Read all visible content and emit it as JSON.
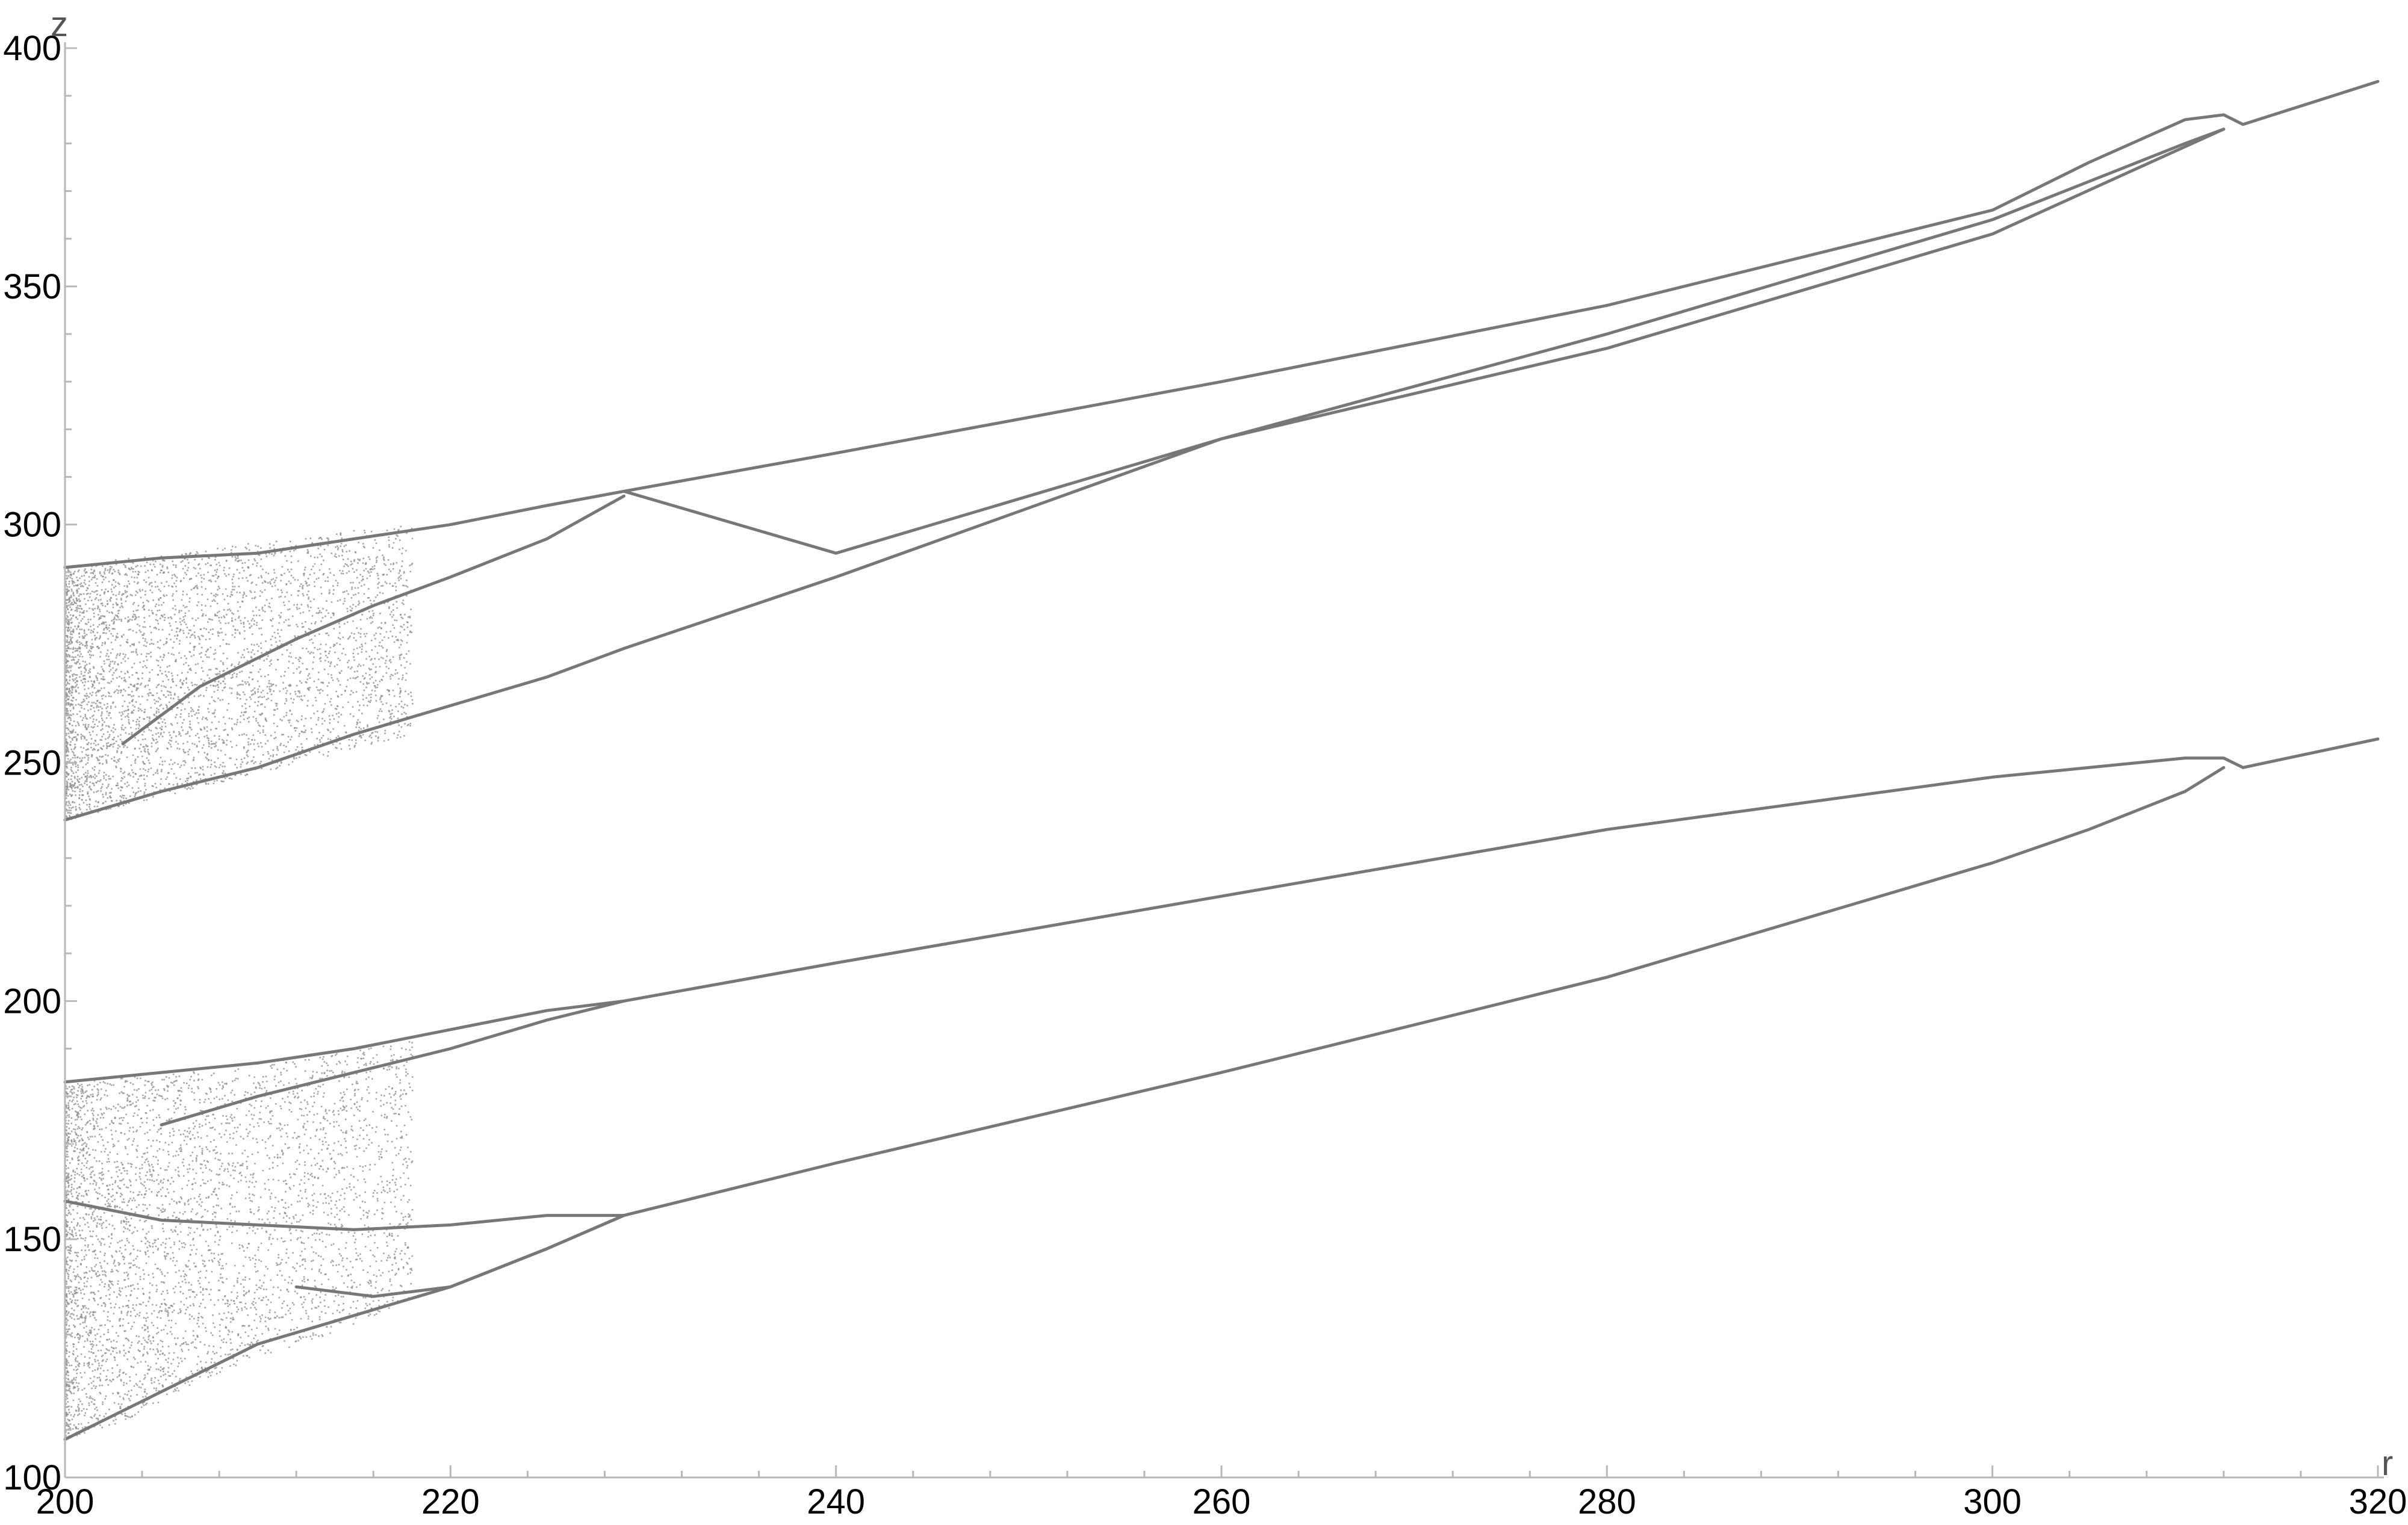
{
  "chart_data": {
    "type": "scatter",
    "title": "",
    "xlabel": "r",
    "ylabel": "z",
    "xlim": [
      200,
      320
    ],
    "ylim": [
      100,
      400
    ],
    "x_ticks": [
      200,
      220,
      240,
      260,
      280,
      300,
      320
    ],
    "y_ticks": [
      100,
      150,
      200,
      250,
      300,
      350,
      400
    ],
    "x_minor_step": 4,
    "y_minor_step": 10,
    "grid": false,
    "legend": "none",
    "point_color": "#8a8a8a",
    "line_color": "#777777",
    "axis_color": "#b8b8b8",
    "branches": [
      {
        "name": "upper-top",
        "points": [
          [
            200,
            291
          ],
          [
            205,
            293
          ],
          [
            210,
            294
          ],
          [
            215,
            297
          ],
          [
            220,
            300
          ],
          [
            225,
            304
          ],
          [
            229,
            307
          ],
          [
            240,
            315
          ],
          [
            260,
            330
          ],
          [
            280,
            346
          ],
          [
            300,
            366
          ],
          [
            305,
            376
          ],
          [
            310,
            385
          ],
          [
            312,
            386
          ],
          [
            313,
            384
          ],
          [
            320,
            393
          ]
        ]
      },
      {
        "name": "upper-inner",
        "points": [
          [
            203,
            254
          ],
          [
            207,
            266
          ],
          [
            212,
            276
          ],
          [
            216,
            283
          ],
          [
            220,
            289
          ],
          [
            225,
            297
          ],
          [
            229,
            306
          ]
        ]
      },
      {
        "name": "upper-lower-loop",
        "points": [
          [
            229,
            307
          ],
          [
            240,
            294
          ],
          [
            260,
            318
          ],
          [
            280,
            340
          ],
          [
            300,
            364
          ],
          [
            305,
            372
          ],
          [
            310,
            380
          ],
          [
            312,
            383
          ]
        ]
      },
      {
        "name": "upper-bottom",
        "points": [
          [
            200,
            238
          ],
          [
            205,
            244
          ],
          [
            210,
            249
          ],
          [
            215,
            256
          ],
          [
            220,
            262
          ],
          [
            225,
            268
          ],
          [
            229,
            274
          ],
          [
            240,
            289
          ],
          [
            260,
            318
          ],
          [
            280,
            337
          ],
          [
            300,
            361
          ],
          [
            312,
            383
          ]
        ]
      },
      {
        "name": "lower-top",
        "points": [
          [
            200,
            183
          ],
          [
            205,
            185
          ],
          [
            210,
            187
          ],
          [
            215,
            190
          ],
          [
            220,
            194
          ],
          [
            225,
            198
          ],
          [
            229,
            200
          ],
          [
            240,
            208
          ],
          [
            260,
            222
          ],
          [
            280,
            236
          ],
          [
            300,
            247
          ],
          [
            305,
            249
          ],
          [
            310,
            251
          ],
          [
            312,
            251
          ],
          [
            313,
            249
          ],
          [
            320,
            255
          ]
        ]
      },
      {
        "name": "lower-inner",
        "points": [
          [
            205,
            174
          ],
          [
            210,
            180
          ],
          [
            215,
            185
          ],
          [
            220,
            190
          ],
          [
            225,
            196
          ],
          [
            229,
            200
          ]
        ]
      },
      {
        "name": "lower-middle",
        "points": [
          [
            200,
            158
          ],
          [
            205,
            154
          ],
          [
            210,
            153
          ],
          [
            215,
            152
          ],
          [
            220,
            153
          ],
          [
            225,
            155
          ],
          [
            229,
            155
          ],
          [
            240,
            166
          ],
          [
            260,
            185
          ],
          [
            280,
            205
          ],
          [
            300,
            229
          ],
          [
            305,
            236
          ],
          [
            310,
            244
          ],
          [
            312,
            249
          ]
        ]
      },
      {
        "name": "lower-mid-inner",
        "points": [
          [
            212,
            140
          ],
          [
            216,
            138
          ],
          [
            220,
            140
          ],
          [
            225,
            148
          ],
          [
            229,
            155
          ]
        ]
      },
      {
        "name": "lower-bottom",
        "points": [
          [
            200,
            108
          ],
          [
            205,
            118
          ],
          [
            210,
            128
          ],
          [
            215,
            134
          ],
          [
            220,
            140
          ],
          [
            225,
            148
          ],
          [
            229,
            155
          ]
        ]
      }
    ],
    "chaotic_bands": [
      {
        "name": "upper-chaos",
        "x": [
          200,
          218
        ],
        "top": [
          291,
          293,
          294,
          296,
          297,
          299,
          300
        ],
        "bottom": [
          238,
          241,
          244,
          247,
          250,
          253,
          256
        ]
      },
      {
        "name": "lower-chaos",
        "x": [
          200,
          218
        ],
        "top": [
          183,
          184,
          185,
          187,
          188,
          190,
          192
        ],
        "bottom": [
          108,
          112,
          118,
          124,
          128,
          132,
          138
        ]
      }
    ]
  }
}
